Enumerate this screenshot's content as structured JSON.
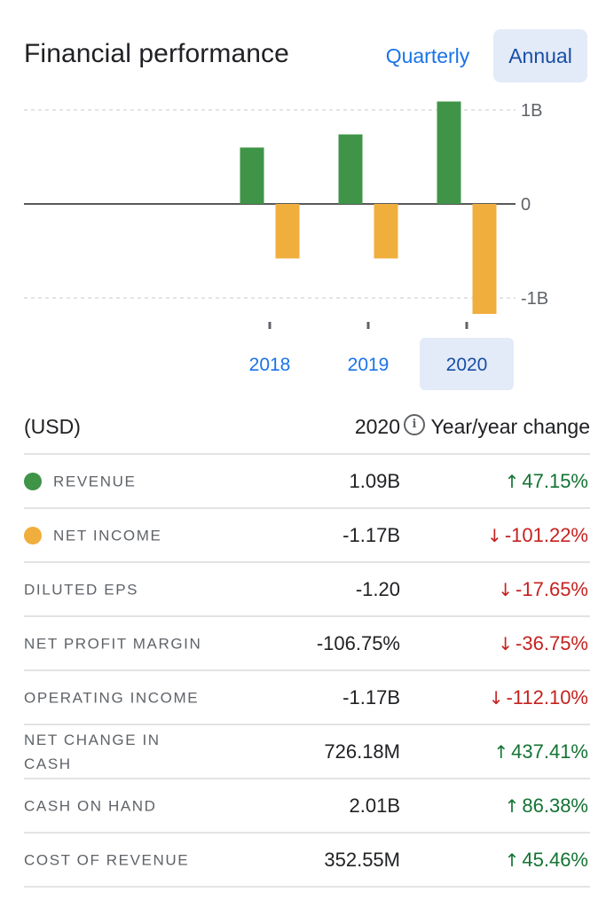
{
  "header": {
    "title": "Financial performance",
    "quarterly_label": "Quarterly",
    "annual_label": "Annual",
    "selected_period": "Annual"
  },
  "colors": {
    "revenue": "#3f9447",
    "net_income": "#f0ae3c",
    "accent": "#1a73e8",
    "positive": "#137333",
    "negative": "#c5221f"
  },
  "chart_data": {
    "type": "bar",
    "categories": [
      "2018",
      "2019",
      "2020"
    ],
    "selected_category": "2020",
    "series": [
      {
        "name": "Revenue",
        "color": "#3f9447",
        "values": [
          0.6,
          0.74,
          1.09
        ]
      },
      {
        "name": "Net income",
        "color": "#f0ae3c",
        "values": [
          -0.58,
          -0.58,
          -1.17
        ]
      }
    ],
    "y_ticks": [
      {
        "value": 1,
        "label": "1B"
      },
      {
        "value": 0,
        "label": "0"
      },
      {
        "value": -1,
        "label": "-1B"
      }
    ],
    "ylim": [
      -1.17,
      1.09
    ],
    "unit": "B",
    "grid": true
  },
  "table": {
    "unit_label": "(USD)",
    "year_label": "2020",
    "change_label": "Year/year change",
    "rows": [
      {
        "label": "REVENUE",
        "value": "1.09B",
        "change": "47.15%",
        "direction": "up",
        "dot": "revenue"
      },
      {
        "label": "NET INCOME",
        "value": "-1.17B",
        "change": "-101.22%",
        "direction": "down",
        "dot": "net_income"
      },
      {
        "label": "DILUTED EPS",
        "value": "-1.20",
        "change": "-17.65%",
        "direction": "down"
      },
      {
        "label": "NET PROFIT MARGIN",
        "value": "-106.75%",
        "change": "-36.75%",
        "direction": "down"
      },
      {
        "label": "OPERATING INCOME",
        "value": "-1.17B",
        "change": "-112.10%",
        "direction": "down"
      },
      {
        "label": "NET CHANGE IN CASH",
        "value": "726.18M",
        "change": "437.41%",
        "direction": "up"
      },
      {
        "label": "CASH ON HAND",
        "value": "2.01B",
        "change": "86.38%",
        "direction": "up"
      },
      {
        "label": "COST OF REVENUE",
        "value": "352.55M",
        "change": "45.46%",
        "direction": "up"
      }
    ]
  }
}
